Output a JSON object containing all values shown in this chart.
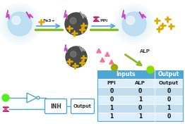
{
  "background_color": "#ffffff",
  "arrow_color": "#4da6d4",
  "sphere_light_color": "#b8ddf0",
  "sphere_dark_color": "#555555",
  "table_header_color": "#4da6d4",
  "table_row_color1": "#ddeeff",
  "table_row_color2": "#c2dcf0",
  "gate_color": "#4da6d4",
  "fe_label": "Fe3+",
  "ppi_label": "PPi",
  "alp_label": "ALP",
  "inh_label": "INH",
  "output_label": "Output",
  "col_headers": [
    "PPi",
    "ALP",
    "Output"
  ],
  "table_data": [
    [
      0,
      0,
      0
    ],
    [
      0,
      1,
      0
    ],
    [
      1,
      0,
      1
    ],
    [
      1,
      1,
      0
    ]
  ],
  "lightning_magenta": "#cc44cc",
  "lightning_gray": "#999999",
  "cross_color": "#ddaa00",
  "green_bar": "#88bb22",
  "pink_tri": "#ee7799",
  "green_dot": "#88dd00",
  "olive_dot": "#99aa00"
}
